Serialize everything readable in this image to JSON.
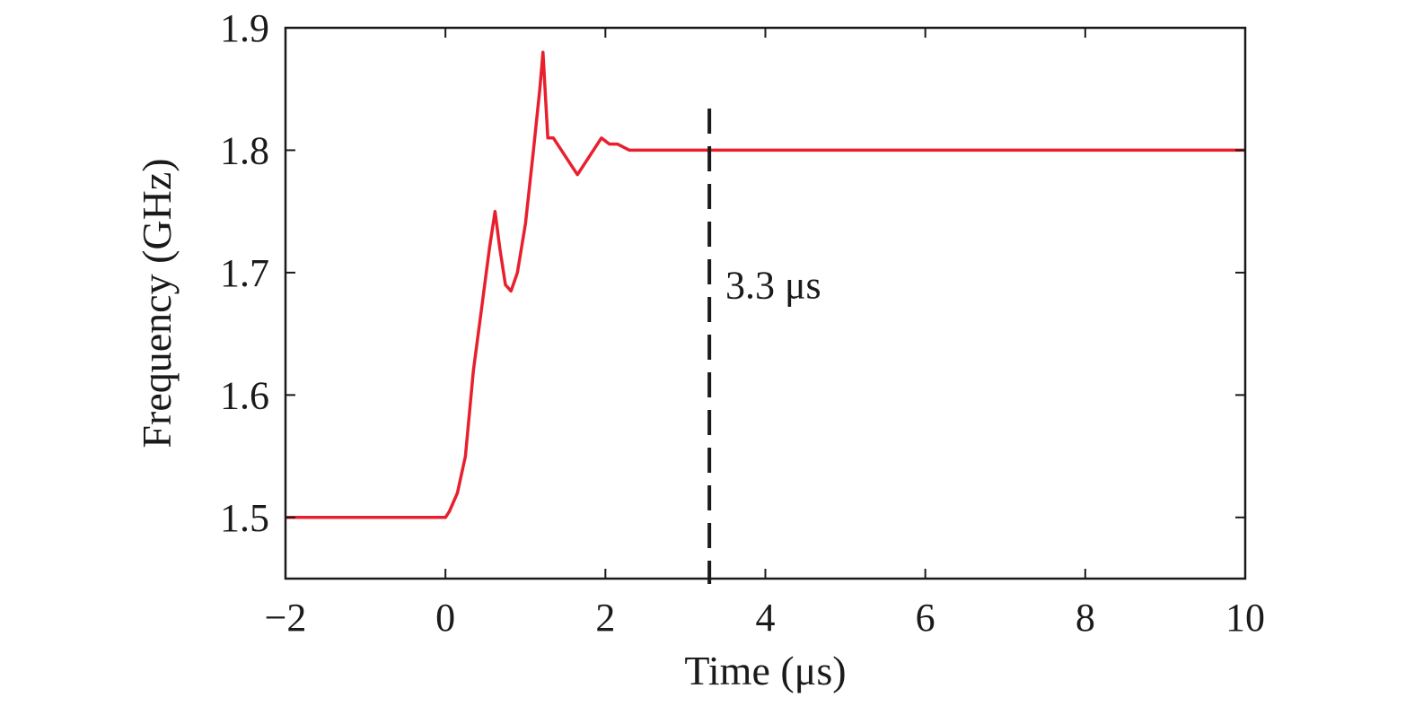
{
  "chart_data": {
    "type": "line",
    "xlabel": "Time (μs)",
    "ylabel": "Frequency (GHz)",
    "xlim": [
      -2,
      10
    ],
    "ylim": [
      1.45,
      1.9
    ],
    "xticks": [
      -2,
      0,
      2,
      4,
      6,
      8,
      10
    ],
    "xtick_labels": [
      "−2",
      "0",
      "2",
      "4",
      "6",
      "8",
      "10"
    ],
    "yticks": [
      1.5,
      1.6,
      1.7,
      1.8,
      1.9
    ],
    "ytick_labels": [
      "1.5",
      "1.6",
      "1.7",
      "1.8",
      "1.9"
    ],
    "grid": false,
    "series": [
      {
        "color": "#e8202e",
        "x": [
          -2,
          -1,
          0,
          0.05,
          0.15,
          0.25,
          0.35,
          0.45,
          0.55,
          0.62,
          0.68,
          0.75,
          0.82,
          0.9,
          1.0,
          1.1,
          1.18,
          1.22,
          1.28,
          1.35,
          1.45,
          1.55,
          1.65,
          1.75,
          1.85,
          1.95,
          2.05,
          2.15,
          2.3,
          2.5,
          2.8,
          3.2,
          4,
          6,
          8,
          10
        ],
        "y": [
          1.5,
          1.5,
          1.5,
          1.505,
          1.52,
          1.55,
          1.62,
          1.67,
          1.72,
          1.75,
          1.72,
          1.69,
          1.685,
          1.7,
          1.74,
          1.8,
          1.85,
          1.88,
          1.81,
          1.81,
          1.8,
          1.79,
          1.78,
          1.79,
          1.8,
          1.81,
          1.805,
          1.805,
          1.8,
          1.8,
          1.8,
          1.8,
          1.8,
          1.8,
          1.8,
          1.8
        ]
      }
    ],
    "annotations": [
      {
        "type": "vline",
        "x": 3.3,
        "style": "dashed",
        "color": "#1a1a1a"
      },
      {
        "type": "text",
        "text": "3.3 μs",
        "x": 3.5,
        "y": 1.69
      }
    ]
  }
}
